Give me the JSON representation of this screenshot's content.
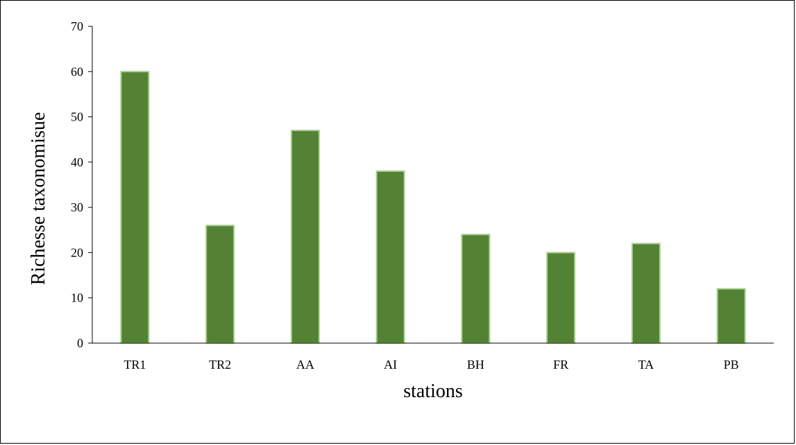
{
  "chart_data": {
    "type": "bar",
    "title": "",
    "xlabel": "stations",
    "ylabel": "Richesse taxonomisue",
    "categories": [
      "TR1",
      "TR2",
      "AA",
      "AI",
      "BH",
      "FR",
      "TA",
      "PB"
    ],
    "values": [
      60,
      26,
      47,
      38,
      24,
      20,
      22,
      12
    ],
    "ylim": [
      0,
      70
    ],
    "yticks": [
      0,
      10,
      20,
      30,
      40,
      50,
      60,
      70
    ],
    "grid": false,
    "legend": "none",
    "bar_color": "#548235",
    "bar_edge_color": "#a9d18e"
  }
}
